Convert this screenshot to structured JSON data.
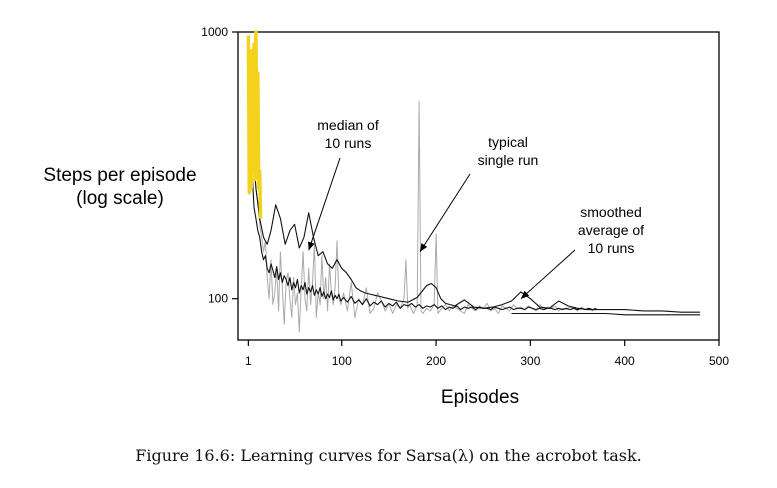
{
  "chart_data": {
    "type": "line",
    "title": "",
    "ylabel_lines": [
      "Steps per episode",
      "(log scale)"
    ],
    "xlabel": "Episodes",
    "y_scale": "log",
    "ylim": [
      70,
      1000
    ],
    "xlim": [
      -10,
      500
    ],
    "y_ticks": [
      100,
      1000
    ],
    "y_tick_labels": [
      "100",
      "1000"
    ],
    "x_ticks": [
      1,
      100,
      200,
      300,
      400,
      500
    ],
    "x_tick_labels": [
      "1",
      "100",
      "200",
      "300",
      "400",
      "500"
    ],
    "grid": false,
    "series": [
      {
        "key": "single",
        "color": "#aaaaaa",
        "x": [
          1,
          3,
          5,
          7,
          9,
          11,
          13,
          15,
          17,
          19,
          21,
          23,
          25,
          27,
          29,
          31,
          33,
          35,
          37,
          39,
          41,
          43,
          45,
          47,
          49,
          51,
          53,
          55,
          57,
          59,
          61,
          63,
          65,
          67,
          69,
          71,
          73,
          75,
          77,
          79,
          81,
          83,
          85,
          87,
          89,
          91,
          93,
          95,
          97,
          99,
          102,
          106,
          110,
          114,
          118,
          122,
          126,
          130,
          134,
          138,
          142,
          146,
          150,
          154,
          158,
          162,
          166,
          168,
          170,
          172,
          176,
          180,
          182,
          184,
          186,
          190,
          194,
          198,
          200,
          202,
          206,
          210,
          214,
          218,
          222,
          226,
          230,
          234,
          238,
          242,
          246,
          250,
          254,
          258,
          262,
          266,
          270,
          274,
          278,
          282,
          286,
          290,
          294,
          298,
          302,
          306,
          310,
          314,
          318,
          322,
          326,
          330,
          334,
          338,
          342,
          346,
          350,
          354,
          358,
          362,
          366,
          370
        ],
        "y": [
          600,
          300,
          820,
          380,
          260,
          230,
          190,
          170,
          150,
          165,
          120,
          100,
          140,
          95,
          105,
          130,
          90,
          150,
          110,
          80,
          115,
          125,
          100,
          85,
          120,
          95,
          105,
          75,
          110,
          150,
          100,
          90,
          130,
          95,
          115,
          160,
          85,
          105,
          95,
          145,
          100,
          120,
          90,
          135,
          105,
          95,
          110,
          165,
          100,
          95,
          105,
          90,
          115,
          85,
          100,
          95,
          110,
          88,
          92,
          105,
          98,
          90,
          96,
          88,
          95,
          92,
          100,
          140,
          92,
          95,
          88,
          94,
          550,
          90,
          88,
          92,
          90,
          95,
          175,
          88,
          92,
          95,
          90,
          94,
          92,
          90,
          88,
          95,
          92,
          90,
          94,
          92,
          96,
          90,
          92,
          88,
          94,
          92,
          90,
          95,
          92,
          93,
          91,
          94,
          92,
          90,
          95,
          91,
          93,
          92,
          94,
          90,
          92,
          91,
          93,
          92,
          90,
          93,
          91,
          92,
          90,
          92
        ]
      },
      {
        "key": "median",
        "color": "#111111",
        "x": [
          1,
          3,
          5,
          7,
          9,
          11,
          13,
          15,
          17,
          19,
          21,
          23,
          25,
          27,
          29,
          31,
          33,
          35,
          37,
          39,
          41,
          43,
          45,
          47,
          49,
          51,
          53,
          55,
          57,
          59,
          61,
          63,
          65,
          67,
          69,
          71,
          73,
          75,
          77,
          79,
          81,
          83,
          85,
          87,
          89,
          91,
          93,
          95,
          97,
          99,
          102,
          106,
          110,
          114,
          118,
          122,
          126,
          130,
          134,
          138,
          142,
          146,
          150,
          154,
          158,
          162,
          166,
          170,
          174,
          178,
          182,
          186,
          190,
          194,
          198,
          202,
          206,
          210,
          214,
          218,
          222,
          226,
          230,
          234,
          238,
          242,
          246,
          250,
          254,
          258,
          262,
          266,
          270,
          274,
          278,
          282,
          286,
          290,
          294,
          298,
          302,
          306,
          310,
          314,
          318,
          322,
          326,
          330,
          334,
          338,
          342,
          346,
          350,
          354,
          358,
          362,
          366,
          370
        ],
        "y": [
          620,
          430,
          300,
          220,
          200,
          180,
          170,
          150,
          140,
          145,
          130,
          125,
          135,
          128,
          120,
          132,
          118,
          125,
          115,
          122,
          118,
          112,
          120,
          108,
          115,
          110,
          118,
          105,
          112,
          108,
          115,
          104,
          110,
          106,
          112,
          103,
          108,
          104,
          110,
          102,
          106,
          100,
          104,
          101,
          107,
          99,
          103,
          100,
          104,
          98,
          101,
          97,
          102,
          96,
          99,
          95,
          100,
          94,
          97,
          95,
          98,
          93,
          96,
          94,
          97,
          92,
          95,
          94,
          96,
          93,
          95,
          92,
          94,
          93,
          95,
          92,
          94,
          91,
          93,
          92,
          94,
          91,
          93,
          92,
          93,
          91,
          93,
          92,
          92,
          91,
          93,
          92,
          91,
          92,
          93,
          91,
          92,
          92,
          91,
          93,
          92,
          91,
          92,
          91,
          92,
          92,
          91,
          92,
          91,
          92,
          91,
          92,
          91,
          92,
          91,
          92,
          91,
          92
        ]
      },
      {
        "key": "smooth",
        "color": "#111111",
        "x": [
          1,
          5,
          9,
          13,
          17,
          21,
          25,
          30,
          35,
          40,
          45,
          50,
          55,
          60,
          65,
          70,
          75,
          80,
          85,
          90,
          95,
          100,
          105,
          110,
          115,
          120,
          125,
          130,
          135,
          140,
          150,
          160,
          170,
          180,
          190,
          195,
          200,
          205,
          210,
          220,
          230,
          240,
          250,
          260,
          270,
          280,
          290,
          300,
          310,
          320,
          330,
          340,
          350,
          360,
          370,
          400,
          420,
          440,
          460,
          480
        ],
        "y": [
          720,
          400,
          260,
          200,
          170,
          160,
          180,
          225,
          200,
          160,
          180,
          190,
          155,
          170,
          210,
          170,
          145,
          150,
          135,
          130,
          140,
          130,
          125,
          118,
          110,
          107,
          105,
          104,
          103,
          102,
          100,
          98,
          97,
          101,
          112,
          114,
          110,
          100,
          96,
          94,
          99,
          93,
          92,
          93,
          95,
          98,
          106,
          100,
          93,
          92,
          98,
          94,
          92,
          91,
          91,
          91,
          90,
          90,
          89,
          89
        ]
      },
      {
        "key": "smooth-yellow-spike",
        "color": "#f2d21a",
        "x": [
          1,
          2,
          3,
          4,
          5,
          6,
          7,
          8,
          9,
          10,
          11,
          12,
          13,
          14
        ],
        "y": [
          970,
          250,
          700,
          260,
          850,
          300,
          900,
          280,
          1000,
          350,
          700,
          260,
          300,
          200
        ]
      },
      {
        "key": "flat-tail",
        "color": "#111111",
        "x": [
          280,
          300,
          320,
          340,
          360,
          380,
          400,
          420,
          440,
          460,
          480
        ],
        "y": [
          88,
          88,
          88,
          88,
          88,
          88,
          87,
          87,
          87,
          87,
          87
        ]
      }
    ],
    "annotations": [
      {
        "key": "median",
        "lines": [
          "median of",
          "10 runs"
        ],
        "target_x": 65,
        "target_y": 152
      },
      {
        "key": "single",
        "lines": [
          "typical",
          "single run"
        ],
        "target_x": 183,
        "target_y": 150
      },
      {
        "key": "smooth",
        "lines": [
          "smoothed",
          "average of",
          "10 runs"
        ],
        "target_x": 290,
        "target_y": 100
      }
    ]
  },
  "caption": "Figure 16.6: Learning curves for Sarsa(λ) on the acrobot task."
}
